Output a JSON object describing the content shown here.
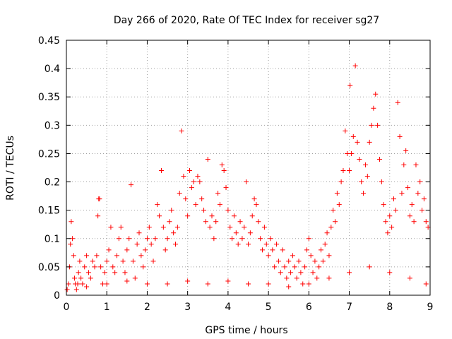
{
  "chart_data": {
    "type": "scatter",
    "title": "Day 266 of 2020, Rate Of TEC Index for receiver sg27",
    "xlabel": "GPS time / hours",
    "ylabel": "ROTI / TECUs",
    "xlim": [
      0,
      9
    ],
    "ylim": [
      0,
      0.45
    ],
    "x_ticks": [
      0,
      1,
      2,
      3,
      4,
      5,
      6,
      7,
      8,
      9
    ],
    "y_ticks": [
      0,
      0.05,
      0.1,
      0.15,
      0.2,
      0.25,
      0.3,
      0.35,
      0.4,
      0.45
    ],
    "x_tick_labels": [
      "0",
      "1",
      "2",
      "3",
      "4",
      "5",
      "6",
      "7",
      "8",
      "9"
    ],
    "y_tick_labels": [
      "0",
      "0.05",
      "0.1",
      "0.15",
      "0.2",
      "0.25",
      "0.3",
      "0.35",
      "0.4",
      "0.45"
    ],
    "grid": true,
    "marker": "+",
    "marker_color": "#ff0000",
    "series": [
      {
        "name": "ROTI",
        "color": "#ff0000",
        "points": [
          [
            0.02,
            0.01
          ],
          [
            0.05,
            0.02
          ],
          [
            0.08,
            0.05
          ],
          [
            0.1,
            0.09
          ],
          [
            0.12,
            0.13
          ],
          [
            0.15,
            0.1
          ],
          [
            0.18,
            0.07
          ],
          [
            0.2,
            0.03
          ],
          [
            0.22,
            0.02
          ],
          [
            0.25,
            0.01
          ],
          [
            0.28,
            0.02
          ],
          [
            0.3,
            0.04
          ],
          [
            0.33,
            0.06
          ],
          [
            0.36,
            0.03
          ],
          [
            0.4,
            0.02
          ],
          [
            0.45,
            0.05
          ],
          [
            0.5,
            0.07
          ],
          [
            0.55,
            0.04
          ],
          [
            0.6,
            0.03
          ],
          [
            0.65,
            0.06
          ],
          [
            0.7,
            0.05
          ],
          [
            0.75,
            0.07
          ],
          [
            0.78,
            0.14
          ],
          [
            0.8,
            0.17
          ],
          [
            0.82,
            0.17
          ],
          [
            0.85,
            0.05
          ],
          [
            0.9,
            0.02
          ],
          [
            0.95,
            0.04
          ],
          [
            1.0,
            0.06
          ],
          [
            1.05,
            0.08
          ],
          [
            1.1,
            0.12
          ],
          [
            1.15,
            0.05
          ],
          [
            1.2,
            0.04
          ],
          [
            1.25,
            0.07
          ],
          [
            1.3,
            0.1
          ],
          [
            1.35,
            0.12
          ],
          [
            1.4,
            0.06
          ],
          [
            1.45,
            0.04
          ],
          [
            1.5,
            0.08
          ],
          [
            1.55,
            0.1
          ],
          [
            1.6,
            0.195
          ],
          [
            1.65,
            0.06
          ],
          [
            1.7,
            0.03
          ],
          [
            1.75,
            0.09
          ],
          [
            1.8,
            0.11
          ],
          [
            1.85,
            0.07
          ],
          [
            1.9,
            0.05
          ],
          [
            1.95,
            0.08
          ],
          [
            2.0,
            0.1
          ],
          [
            2.05,
            0.12
          ],
          [
            2.1,
            0.09
          ],
          [
            2.15,
            0.06
          ],
          [
            2.2,
            0.1
          ],
          [
            2.25,
            0.16
          ],
          [
            2.3,
            0.14
          ],
          [
            2.35,
            0.22
          ],
          [
            2.4,
            0.12
          ],
          [
            2.45,
            0.08
          ],
          [
            2.5,
            0.1
          ],
          [
            2.55,
            0.13
          ],
          [
            2.6,
            0.15
          ],
          [
            2.65,
            0.11
          ],
          [
            2.7,
            0.09
          ],
          [
            2.75,
            0.12
          ],
          [
            2.8,
            0.18
          ],
          [
            2.85,
            0.29
          ],
          [
            2.9,
            0.21
          ],
          [
            2.95,
            0.17
          ],
          [
            3.0,
            0.14
          ],
          [
            3.05,
            0.22
          ],
          [
            3.1,
            0.19
          ],
          [
            3.15,
            0.2
          ],
          [
            3.2,
            0.16
          ],
          [
            3.25,
            0.21
          ],
          [
            3.3,
            0.2
          ],
          [
            3.35,
            0.17
          ],
          [
            3.4,
            0.15
          ],
          [
            3.45,
            0.13
          ],
          [
            3.5,
            0.24
          ],
          [
            3.55,
            0.12
          ],
          [
            3.6,
            0.14
          ],
          [
            3.65,
            0.1
          ],
          [
            3.7,
            0.13
          ],
          [
            3.75,
            0.18
          ],
          [
            3.8,
            0.16
          ],
          [
            3.85,
            0.23
          ],
          [
            3.9,
            0.22
          ],
          [
            3.95,
            0.19
          ],
          [
            4.0,
            0.15
          ],
          [
            4.05,
            0.12
          ],
          [
            4.1,
            0.1
          ],
          [
            4.15,
            0.14
          ],
          [
            4.2,
            0.11
          ],
          [
            4.25,
            0.09
          ],
          [
            4.3,
            0.13
          ],
          [
            4.35,
            0.1
          ],
          [
            4.4,
            0.12
          ],
          [
            4.45,
            0.2
          ],
          [
            4.5,
            0.09
          ],
          [
            4.55,
            0.11
          ],
          [
            4.6,
            0.14
          ],
          [
            4.65,
            0.17
          ],
          [
            4.7,
            0.16
          ],
          [
            4.75,
            0.13
          ],
          [
            4.8,
            0.1
          ],
          [
            4.85,
            0.08
          ],
          [
            4.9,
            0.12
          ],
          [
            4.95,
            0.09
          ],
          [
            5.0,
            0.07
          ],
          [
            5.05,
            0.1
          ],
          [
            5.1,
            0.08
          ],
          [
            5.15,
            0.05
          ],
          [
            5.2,
            0.09
          ],
          [
            5.25,
            0.06
          ],
          [
            5.3,
            0.04
          ],
          [
            5.35,
            0.08
          ],
          [
            5.4,
            0.05
          ],
          [
            5.45,
            0.03
          ],
          [
            5.5,
            0.06
          ],
          [
            5.55,
            0.04
          ],
          [
            5.6,
            0.07
          ],
          [
            5.65,
            0.05
          ],
          [
            5.7,
            0.03
          ],
          [
            5.75,
            0.06
          ],
          [
            5.8,
            0.04
          ],
          [
            5.85,
            0.02
          ],
          [
            5.9,
            0.05
          ],
          [
            5.95,
            0.08
          ],
          [
            6.0,
            0.1
          ],
          [
            6.05,
            0.07
          ],
          [
            6.1,
            0.04
          ],
          [
            6.15,
            0.06
          ],
          [
            6.2,
            0.03
          ],
          [
            6.25,
            0.05
          ],
          [
            6.3,
            0.08
          ],
          [
            6.35,
            0.06
          ],
          [
            6.4,
            0.09
          ],
          [
            6.45,
            0.11
          ],
          [
            6.5,
            0.07
          ],
          [
            6.55,
            0.12
          ],
          [
            6.6,
            0.15
          ],
          [
            6.65,
            0.13
          ],
          [
            6.7,
            0.18
          ],
          [
            6.75,
            0.16
          ],
          [
            6.8,
            0.2
          ],
          [
            6.85,
            0.22
          ],
          [
            6.9,
            0.29
          ],
          [
            6.95,
            0.25
          ],
          [
            7.0,
            0.22
          ],
          [
            7.02,
            0.37
          ],
          [
            7.05,
            0.25
          ],
          [
            7.1,
            0.28
          ],
          [
            7.15,
            0.405
          ],
          [
            7.2,
            0.27
          ],
          [
            7.25,
            0.24
          ],
          [
            7.3,
            0.2
          ],
          [
            7.35,
            0.18
          ],
          [
            7.4,
            0.23
          ],
          [
            7.45,
            0.21
          ],
          [
            7.5,
            0.27
          ],
          [
            7.55,
            0.3
          ],
          [
            7.6,
            0.33
          ],
          [
            7.65,
            0.355
          ],
          [
            7.7,
            0.3
          ],
          [
            7.75,
            0.24
          ],
          [
            7.8,
            0.2
          ],
          [
            7.85,
            0.16
          ],
          [
            7.9,
            0.13
          ],
          [
            7.95,
            0.11
          ],
          [
            8.0,
            0.14
          ],
          [
            8.05,
            0.12
          ],
          [
            8.1,
            0.17
          ],
          [
            8.15,
            0.15
          ],
          [
            8.2,
            0.34
          ],
          [
            8.25,
            0.28
          ],
          [
            8.3,
            0.18
          ],
          [
            8.35,
            0.23
          ],
          [
            8.4,
            0.255
          ],
          [
            8.45,
            0.19
          ],
          [
            8.5,
            0.14
          ],
          [
            8.55,
            0.16
          ],
          [
            8.6,
            0.13
          ],
          [
            8.65,
            0.23
          ],
          [
            8.7,
            0.18
          ],
          [
            8.75,
            0.2
          ],
          [
            8.8,
            0.15
          ],
          [
            8.85,
            0.17
          ],
          [
            8.9,
            0.13
          ],
          [
            8.95,
            0.12
          ],
          [
            0.5,
            0.015
          ],
          [
            1.0,
            0.02
          ],
          [
            1.5,
            0.025
          ],
          [
            2.0,
            0.02
          ],
          [
            2.5,
            0.02
          ],
          [
            3.0,
            0.025
          ],
          [
            3.5,
            0.02
          ],
          [
            4.0,
            0.025
          ],
          [
            4.5,
            0.02
          ],
          [
            5.0,
            0.02
          ],
          [
            5.5,
            0.015
          ],
          [
            6.0,
            0.02
          ],
          [
            6.5,
            0.03
          ],
          [
            7.0,
            0.04
          ],
          [
            7.5,
            0.05
          ],
          [
            8.0,
            0.04
          ],
          [
            8.5,
            0.03
          ],
          [
            8.9,
            0.02
          ]
        ]
      }
    ]
  }
}
